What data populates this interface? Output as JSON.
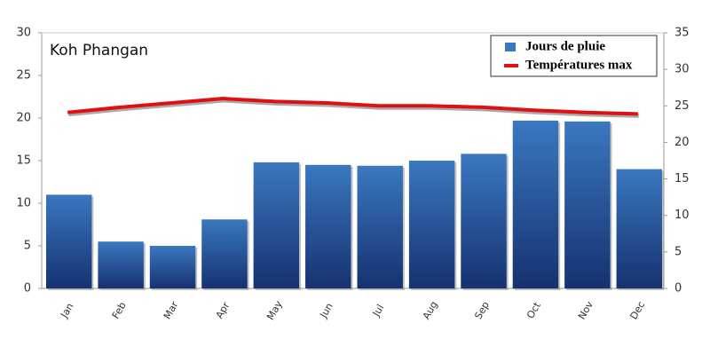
{
  "chart_data": {
    "type": "bar",
    "title": "Koh Phangan",
    "categories": [
      "Jan",
      "Feb",
      "Mar",
      "Apr",
      "May",
      "Jun",
      "Jul",
      "Aug",
      "Sep",
      "Oct",
      "Nov",
      "Dec"
    ],
    "series": [
      {
        "name": "Jours de pluie",
        "color": "#3a78c0",
        "values": [
          11,
          5.5,
          5,
          8.1,
          14.8,
          14.5,
          14.4,
          15,
          15.8,
          19.7,
          19.6,
          14
        ]
      },
      {
        "name": "Températures max",
        "color": "#e01010",
        "axis": "y2",
        "values": [
          24.1,
          24.8,
          25.4,
          26,
          25.6,
          25.4,
          25,
          25,
          24.8,
          24.4,
          24.1,
          23.9
        ]
      }
    ],
    "ylim": [
      0,
      30
    ],
    "yticks": [
      0,
      5,
      10,
      15,
      20,
      25,
      30
    ],
    "y2lim": [
      0,
      35
    ],
    "y2ticks": [
      0,
      5,
      10,
      15,
      20,
      25,
      30,
      35
    ],
    "grid": false,
    "legend": "top-right"
  }
}
